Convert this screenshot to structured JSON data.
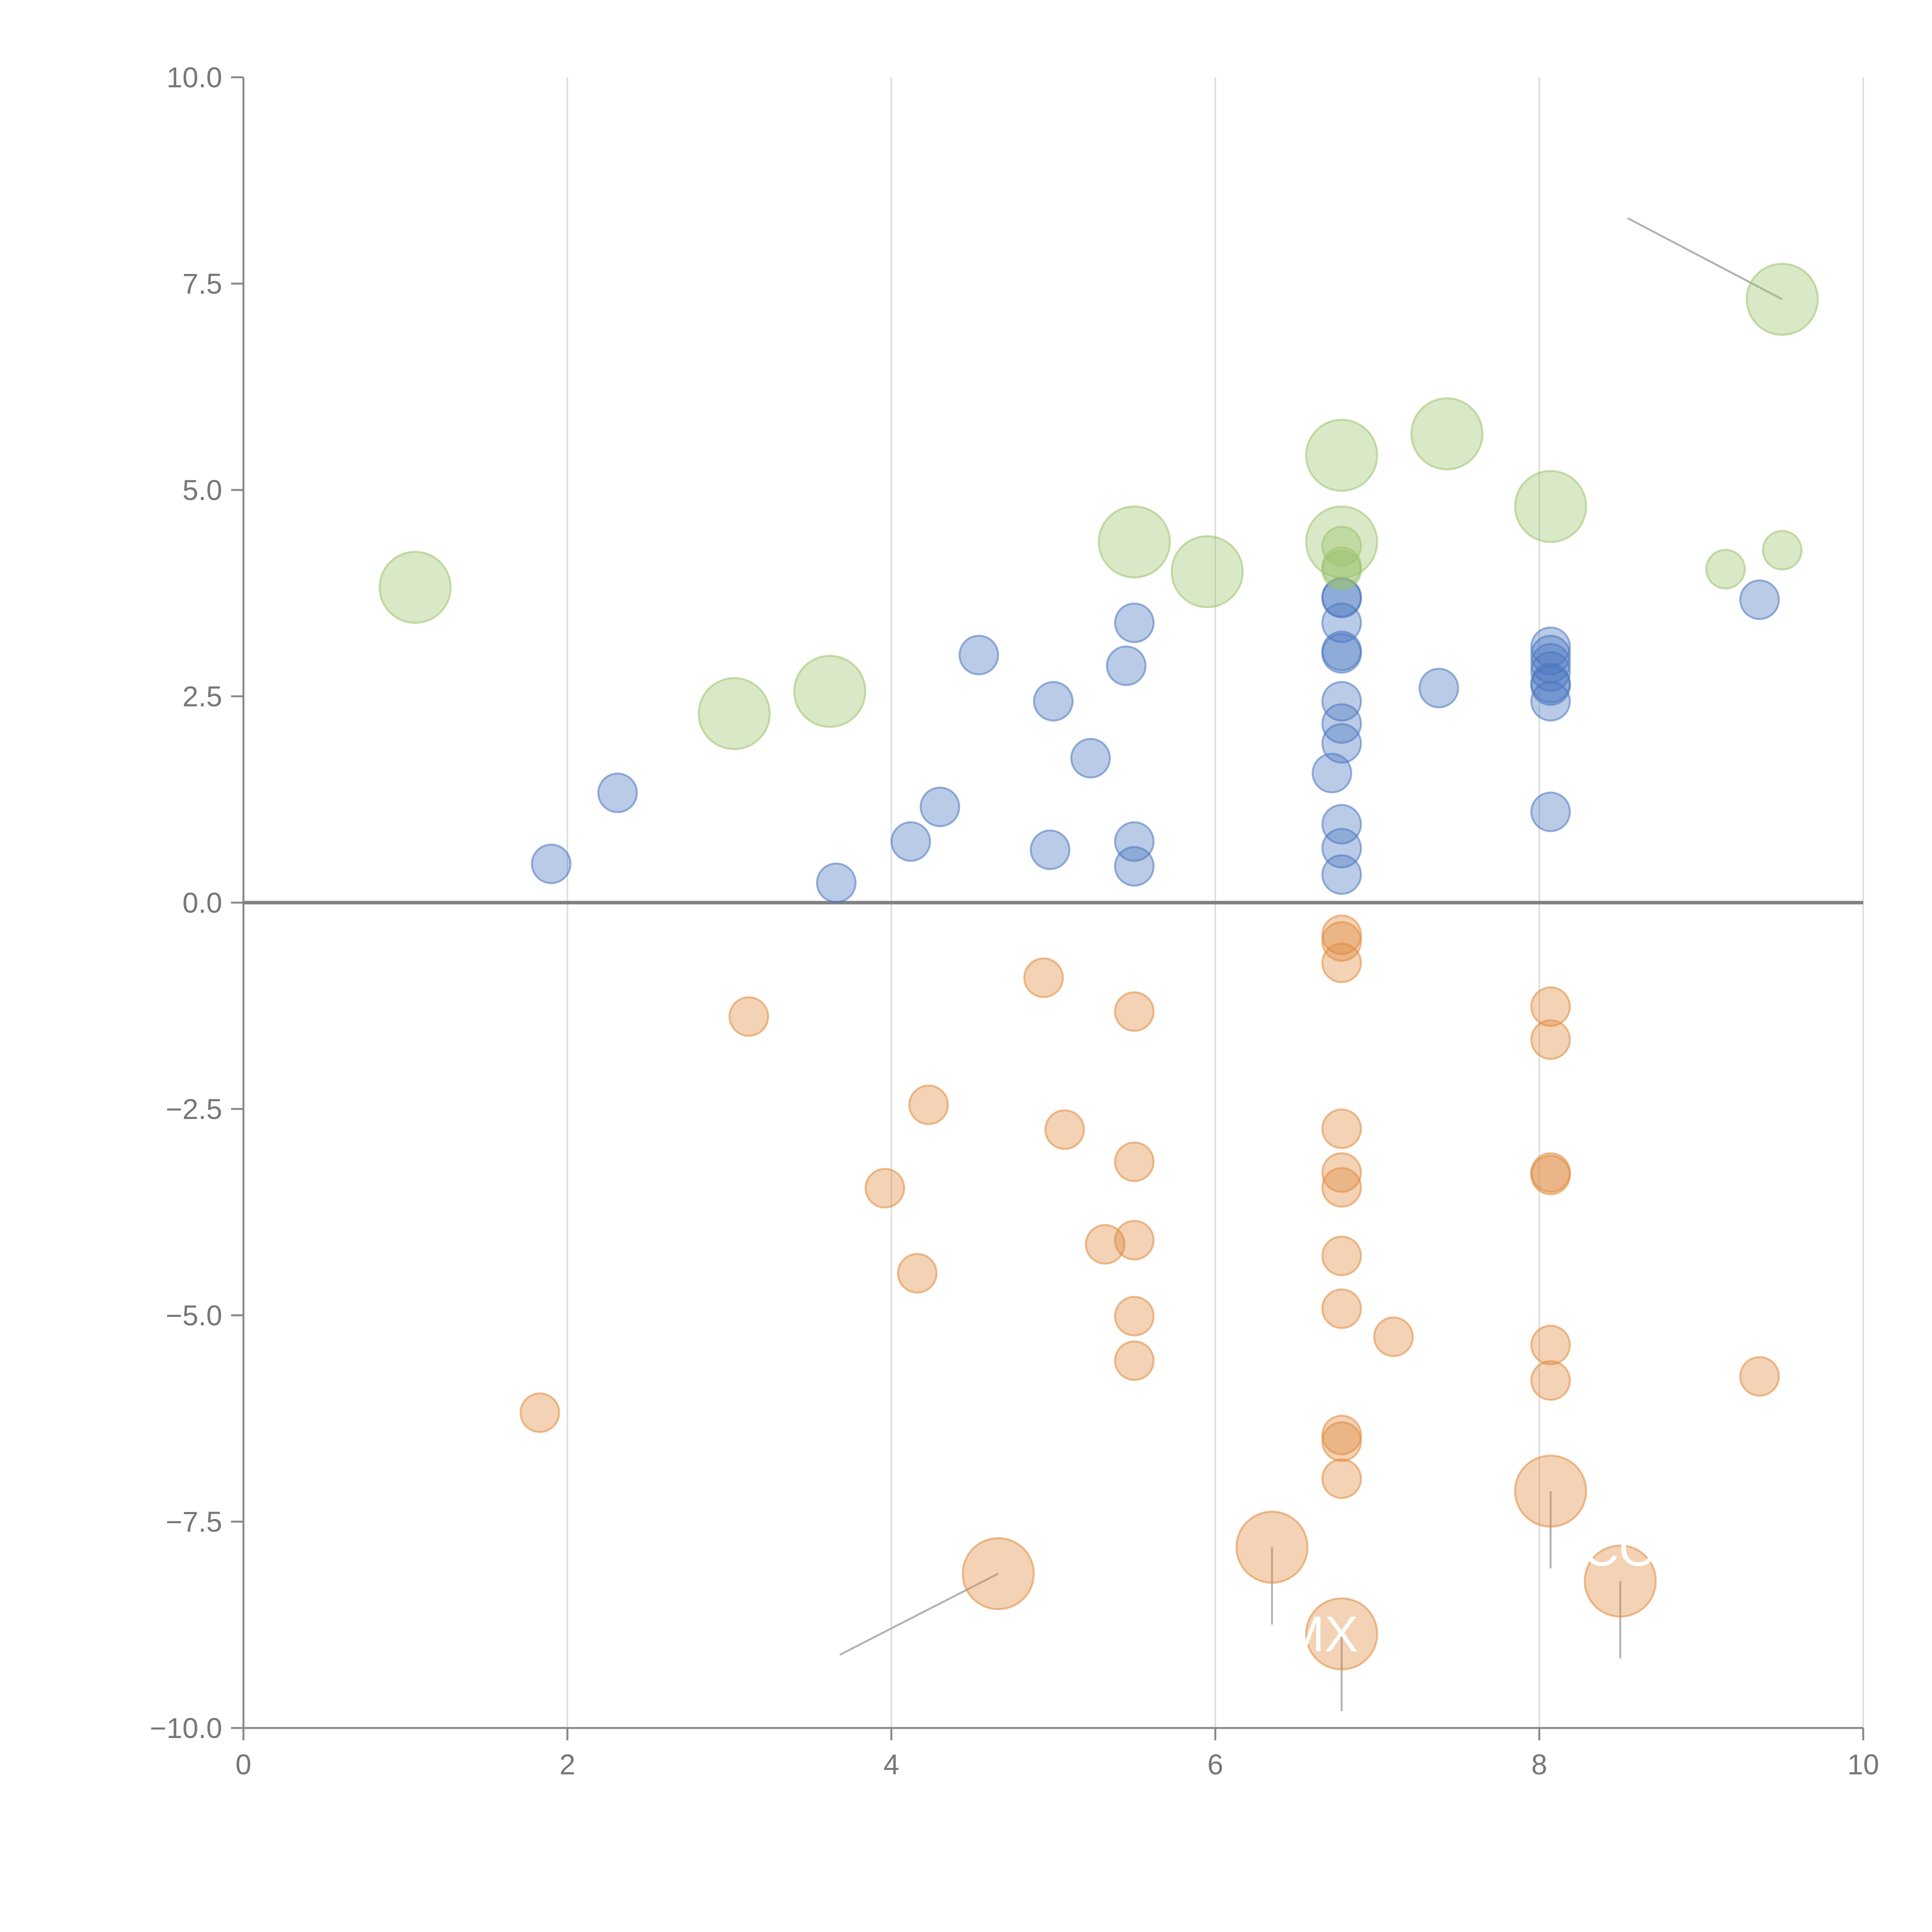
{
  "chart_data": {
    "type": "scatter",
    "title": "",
    "xlabel": "",
    "ylabel": "",
    "xlim": [
      0,
      10
    ],
    "ylim": [
      -10,
      10
    ],
    "x_ticks": [
      0,
      2,
      4,
      6,
      8,
      10
    ],
    "x_tick_labels": [
      "0",
      "2",
      "4",
      "6",
      "8",
      "10"
    ],
    "y_ticks": [
      -10,
      -7.5,
      -5,
      -2.5,
      0,
      2.5,
      5,
      7.5,
      10
    ],
    "y_tick_labels": [
      "−10.0",
      "−7.5",
      "−5.0",
      "−2.5",
      "0.0",
      "2.5",
      "5.0",
      "7.5",
      "10.0"
    ],
    "grid": "vertical",
    "zero_line": true,
    "series": [
      {
        "name": "blue",
        "color": "#4a76c0",
        "size": "small",
        "points": [
          [
            1.9,
            0.47
          ],
          [
            2.31,
            1.33
          ],
          [
            3.66,
            0.24
          ],
          [
            4.12,
            0.74
          ],
          [
            4.3,
            1.16
          ],
          [
            4.54,
            3.0
          ],
          [
            4.98,
            0.64
          ],
          [
            5.0,
            2.44
          ],
          [
            5.23,
            1.75
          ],
          [
            5.45,
            2.87
          ],
          [
            5.5,
            3.39
          ],
          [
            5.5,
            0.74
          ],
          [
            5.5,
            0.44
          ],
          [
            6.72,
            1.57
          ],
          [
            6.78,
            0.95
          ],
          [
            6.78,
            0.66
          ],
          [
            6.78,
            0.34
          ],
          [
            6.78,
            1.93
          ],
          [
            6.78,
            2.17
          ],
          [
            6.78,
            2.44
          ],
          [
            6.78,
            3.02
          ],
          [
            6.78,
            3.05
          ],
          [
            6.78,
            3.39
          ],
          [
            6.78,
            3.69
          ],
          [
            6.78,
            3.7
          ],
          [
            7.38,
            2.6
          ],
          [
            8.07,
            1.1
          ],
          [
            8.07,
            2.44
          ],
          [
            8.07,
            2.63
          ],
          [
            8.07,
            2.66
          ],
          [
            8.07,
            2.8
          ],
          [
            8.07,
            2.9
          ],
          [
            8.07,
            3.0
          ],
          [
            8.07,
            3.1
          ],
          [
            9.36,
            3.67
          ]
        ]
      },
      {
        "name": "orange",
        "color": "#e08a3c",
        "size": "small",
        "points": [
          [
            1.83,
            -6.18
          ],
          [
            3.12,
            -1.38
          ],
          [
            3.96,
            -3.46
          ],
          [
            4.16,
            -4.49
          ],
          [
            4.23,
            -2.45
          ],
          [
            4.94,
            -0.91
          ],
          [
            5.07,
            -2.75
          ],
          [
            5.32,
            -4.14
          ],
          [
            5.5,
            -1.32
          ],
          [
            5.5,
            -3.14
          ],
          [
            5.5,
            -4.09
          ],
          [
            5.5,
            -5.01
          ],
          [
            5.5,
            -5.55
          ],
          [
            6.78,
            -0.39
          ],
          [
            6.78,
            -0.47
          ],
          [
            6.78,
            -0.73
          ],
          [
            6.78,
            -2.74
          ],
          [
            6.78,
            -3.27
          ],
          [
            6.78,
            -3.45
          ],
          [
            6.78,
            -4.28
          ],
          [
            6.78,
            -4.92
          ],
          [
            6.78,
            -6.45
          ],
          [
            6.78,
            -6.53
          ],
          [
            6.78,
            -6.98
          ],
          [
            7.1,
            -5.26
          ],
          [
            8.07,
            -1.26
          ],
          [
            8.07,
            -1.66
          ],
          [
            8.07,
            -3.27
          ],
          [
            8.07,
            -3.3
          ],
          [
            8.07,
            -5.36
          ],
          [
            8.07,
            -5.79
          ],
          [
            9.36,
            -5.74
          ]
        ]
      },
      {
        "name": "green",
        "color": "#9cc36b",
        "size": "small",
        "points": [
          [
            6.78,
            4.32
          ],
          [
            6.78,
            4.03
          ],
          [
            6.78,
            4.07
          ],
          [
            9.15,
            4.04
          ],
          [
            9.5,
            4.27
          ]
        ]
      },
      {
        "name": "green-large",
        "color": "#9cc36b",
        "size": "large",
        "points": [
          [
            1.06,
            3.82
          ],
          [
            3.03,
            2.29
          ],
          [
            3.62,
            2.56
          ],
          [
            5.5,
            4.37
          ],
          [
            5.95,
            4.01
          ],
          [
            6.78,
            5.42
          ],
          [
            6.78,
            4.37
          ],
          [
            7.43,
            5.68
          ],
          [
            8.07,
            4.8
          ],
          [
            9.5,
            7.31
          ]
        ]
      },
      {
        "name": "orange-large",
        "color": "#e08a3c",
        "size": "large",
        "points": [
          [
            4.66,
            -8.13
          ],
          [
            6.35,
            -7.81
          ],
          [
            6.78,
            -8.86
          ],
          [
            8.07,
            -7.13
          ],
          [
            8.5,
            -8.22
          ]
        ]
      }
    ],
    "annotations": [
      {
        "text": "MX",
        "x": 6.78,
        "y": -8.86
      },
      {
        "text": "CO",
        "x": 8.5,
        "y": -8.22
      }
    ]
  }
}
